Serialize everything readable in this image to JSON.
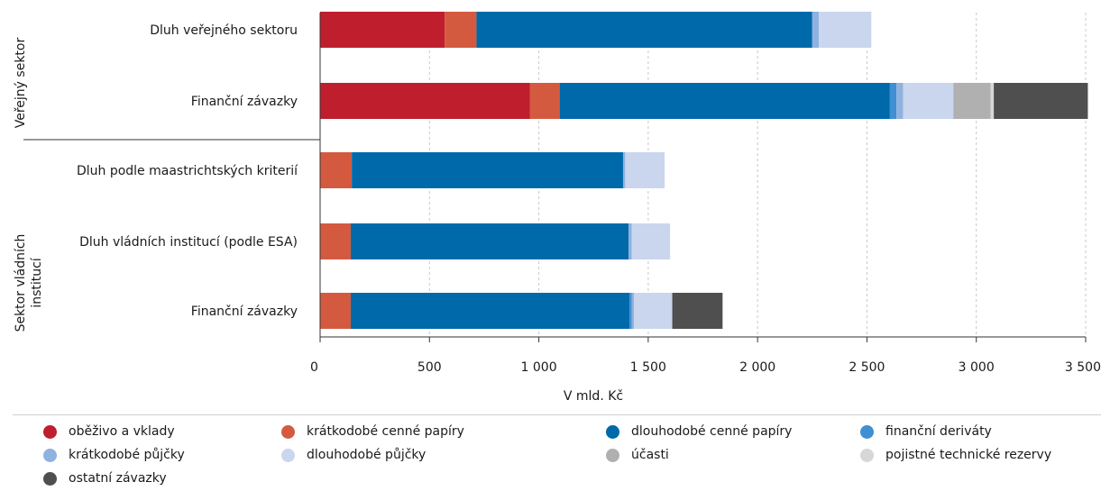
{
  "chart_data": {
    "type": "bar",
    "orientation": "horizontal",
    "stacked": true,
    "xlabel": "V mld. Kč",
    "xlim": [
      0,
      3500
    ],
    "xticks": [
      0,
      500,
      1000,
      1500,
      2000,
      2500,
      3000,
      3500
    ],
    "xtick_labels": [
      "0",
      "500",
      "1 000",
      "1 500",
      "2 000",
      "2 500",
      "3 000",
      "3 500"
    ],
    "grid": true,
    "legend_position": "bottom",
    "groups": [
      {
        "label": "Veřejný sektor",
        "categories": [
          0,
          1
        ]
      },
      {
        "label": "Sektor vládních institucí",
        "categories": [
          2,
          3,
          4
        ]
      }
    ],
    "categories": [
      "Dluh veřejného sektoru",
      "Finanční závazky",
      "Dluh podle maastrichtských kriterií",
      "Dluh vládních institucí (podle ESA)",
      "Finanční závazky"
    ],
    "series": [
      {
        "name": "oběživo a vklady",
        "color": "#bf1e2d",
        "values": [
          570,
          960,
          0,
          0,
          0
        ]
      },
      {
        "name": "krátkodobé cenné papíry",
        "color": "#d45a3f",
        "values": [
          145,
          135,
          145,
          140,
          140
        ]
      },
      {
        "name": "dlouhodobé cenné papíry",
        "color": "#0069aa",
        "values": [
          1535,
          1510,
          1240,
          1270,
          1275
        ]
      },
      {
        "name": "finanční deriváty",
        "color": "#3f8fd2",
        "values": [
          0,
          30,
          0,
          0,
          10
        ]
      },
      {
        "name": "krátkodobé půjčky",
        "color": "#8fb2df",
        "values": [
          30,
          30,
          10,
          15,
          10
        ]
      },
      {
        "name": "dlouhodobé půjčky",
        "color": "#c9d6ee",
        "values": [
          240,
          230,
          180,
          175,
          175
        ]
      },
      {
        "name": "účasti",
        "color": "#b0b0b0",
        "values": [
          0,
          170,
          0,
          0,
          0
        ]
      },
      {
        "name": "pojistné technické rezervy",
        "color": "#d7d7d7",
        "values": [
          0,
          15,
          0,
          0,
          0
        ]
      },
      {
        "name": "ostatní závazky",
        "color": "#4f4f4f",
        "values": [
          0,
          430,
          0,
          0,
          230
        ]
      }
    ]
  }
}
